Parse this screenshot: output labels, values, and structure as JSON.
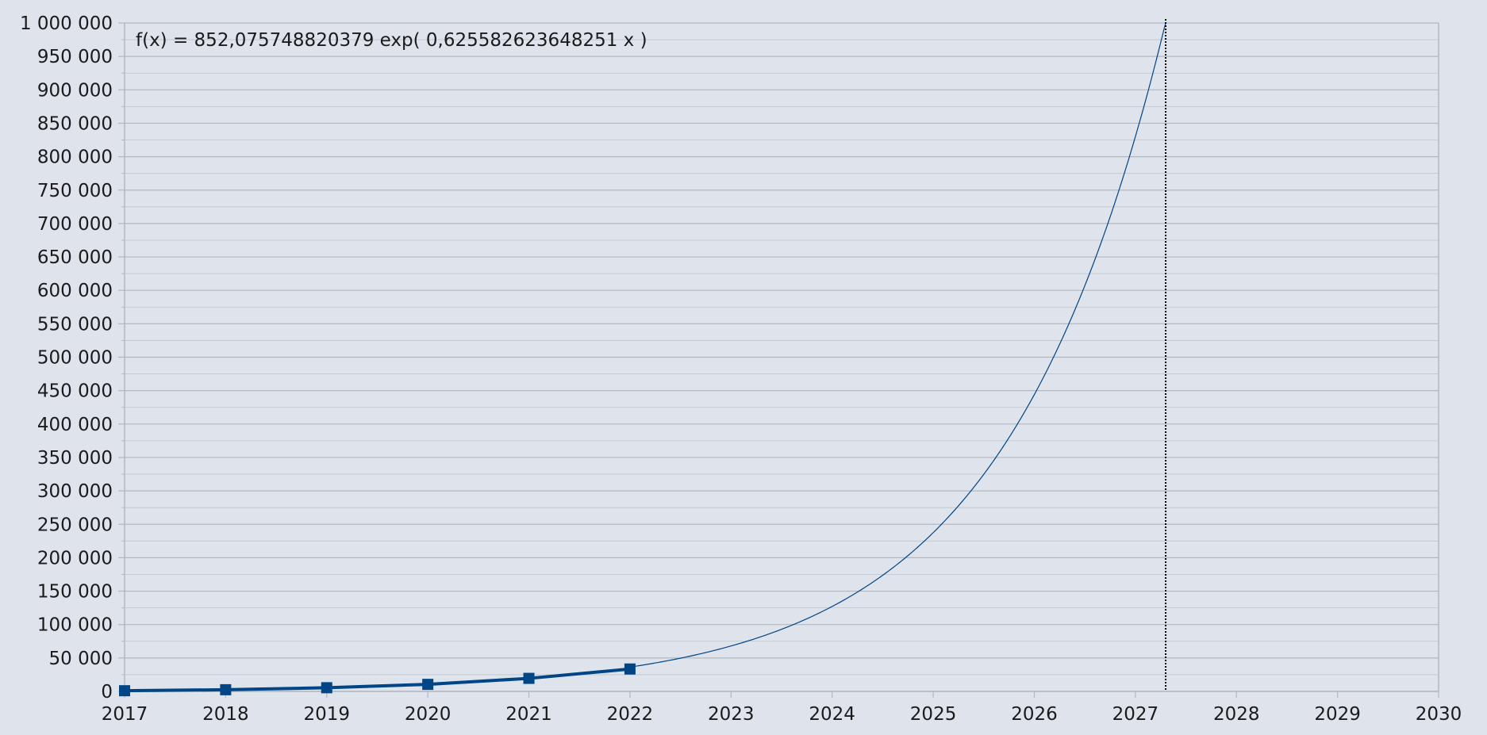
{
  "chart_data": {
    "type": "line",
    "title": "",
    "xlabel": "",
    "ylabel": "",
    "xlim": [
      2017,
      2030
    ],
    "ylim": [
      0,
      1000000
    ],
    "x_ticks": [
      2017,
      2018,
      2019,
      2020,
      2021,
      2022,
      2023,
      2024,
      2025,
      2026,
      2027,
      2028,
      2029,
      2030
    ],
    "x_tick_labels": [
      "2017",
      "2018",
      "2019",
      "2020",
      "2021",
      "2022",
      "2023",
      "2024",
      "2025",
      "2026",
      "2027",
      "2028",
      "2029",
      "2030"
    ],
    "y_ticks": [
      0,
      50000,
      100000,
      150000,
      200000,
      250000,
      300000,
      350000,
      400000,
      450000,
      500000,
      550000,
      600000,
      650000,
      700000,
      750000,
      800000,
      850000,
      900000,
      950000,
      1000000
    ],
    "y_tick_labels": [
      "0",
      "50 000",
      "100 000",
      "150 000",
      "200 000",
      "250 000",
      "300 000",
      "350 000",
      "400 000",
      "450 000",
      "500 000",
      "550 000",
      "600 000",
      "650 000",
      "700 000",
      "750 000",
      "800 000",
      "850 000",
      "900 000",
      "950 000",
      "1 000 000"
    ],
    "y_minor_ticks": true,
    "grid": true,
    "series": [
      {
        "x": [
          2017,
          2018,
          2019,
          2020,
          2021,
          2022
        ],
        "values": [
          1000,
          2500,
          5500,
          10500,
          19500,
          33500
        ],
        "color": "#004586",
        "marker": "square"
      }
    ],
    "trendline": {
      "equation_label": "f(x) = 852,075748820379 exp( 0,625582623648251 x )",
      "a": 852.075748820379,
      "b": 0.625582623648251,
      "x_origin": 2016,
      "x_start": 2022,
      "x_end": 2027.3,
      "color": "#004586"
    },
    "reference_line": {
      "x": 2027.3,
      "style": "dotted",
      "color": "#000000"
    },
    "colors": {
      "background": "#dee3ec",
      "grid": "#b3b8c0",
      "axis": "#b3b8c0",
      "text": "#1b1b1b"
    }
  }
}
